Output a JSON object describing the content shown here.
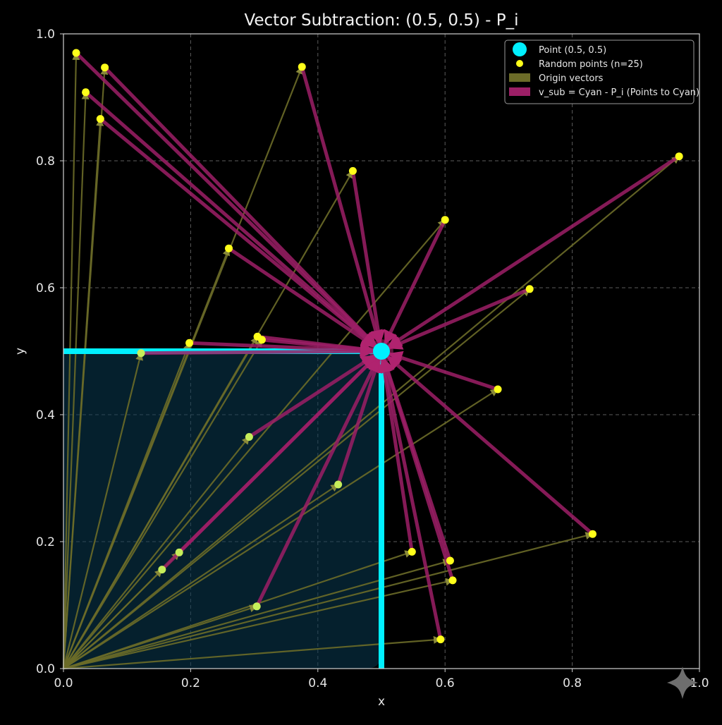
{
  "chart_data": {
    "type": "scatter",
    "title": "Vector Subtraction: (0.5, 0.5) - P_i",
    "xlabel": "x",
    "ylabel": "y",
    "xlim": [
      0.0,
      1.0
    ],
    "ylim": [
      0.0,
      1.0
    ],
    "xticks": [
      "0.0",
      "0.2",
      "0.4",
      "0.6",
      "0.8",
      "1.0"
    ],
    "yticks": [
      "0.0",
      "0.2",
      "0.4",
      "0.6",
      "0.8",
      "1.0"
    ],
    "grid": true,
    "legend_position": "top-right",
    "target_point": {
      "x": 0.5,
      "y": 0.5
    },
    "points": [
      {
        "x": 0.02,
        "y": 0.97
      },
      {
        "x": 0.065,
        "y": 0.947
      },
      {
        "x": 0.035,
        "y": 0.908
      },
      {
        "x": 0.058,
        "y": 0.866
      },
      {
        "x": 0.375,
        "y": 0.948
      },
      {
        "x": 0.455,
        "y": 0.784
      },
      {
        "x": 0.968,
        "y": 0.807
      },
      {
        "x": 0.6,
        "y": 0.707
      },
      {
        "x": 0.26,
        "y": 0.662
      },
      {
        "x": 0.733,
        "y": 0.598
      },
      {
        "x": 0.305,
        "y": 0.523
      },
      {
        "x": 0.312,
        "y": 0.518
      },
      {
        "x": 0.198,
        "y": 0.513
      },
      {
        "x": 0.122,
        "y": 0.497
      },
      {
        "x": 0.683,
        "y": 0.44
      },
      {
        "x": 0.292,
        "y": 0.365
      },
      {
        "x": 0.432,
        "y": 0.29
      },
      {
        "x": 0.832,
        "y": 0.212
      },
      {
        "x": 0.182,
        "y": 0.183
      },
      {
        "x": 0.548,
        "y": 0.184
      },
      {
        "x": 0.608,
        "y": 0.17
      },
      {
        "x": 0.155,
        "y": 0.156
      },
      {
        "x": 0.612,
        "y": 0.139
      },
      {
        "x": 0.304,
        "y": 0.098
      },
      {
        "x": 0.593,
        "y": 0.046
      }
    ],
    "series": [
      {
        "name": "Point (0.5, 0.5)",
        "kind": "marker",
        "color": "#00f0ff"
      },
      {
        "name": "Random points (n=25)",
        "kind": "marker",
        "color": "#ffff1a"
      },
      {
        "name": "Origin vectors",
        "kind": "line",
        "color": "#6b6b28"
      },
      {
        "name": "v_sub = Cyan - P_i (Points to Cyan)",
        "kind": "line",
        "color": "#9c1f66"
      }
    ],
    "colors": {
      "background": "#000000",
      "grid": "#7a7a7a",
      "cyan": "#00f0ff",
      "point": "#ffff1a",
      "origin_vector": "#6b6b28",
      "sub_vector": "#9c1f66",
      "highlight_fill": "#0a3a52"
    }
  }
}
